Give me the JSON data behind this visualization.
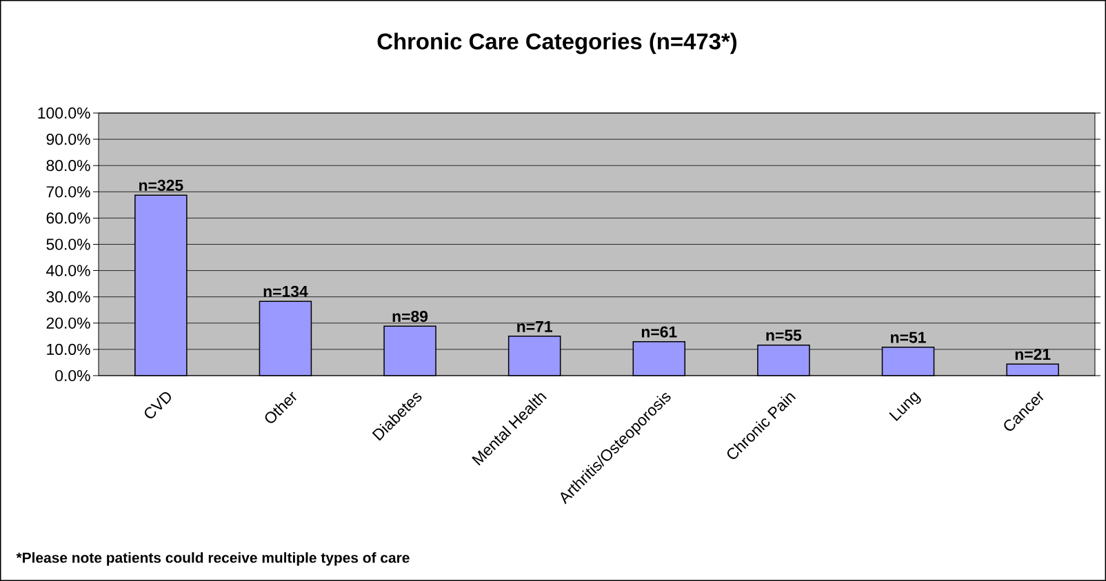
{
  "chart_data": {
    "type": "bar",
    "title": "Chronic Care Categories (n=473*)",
    "categories": [
      "CVD",
      "Other",
      "Diabetes",
      "Mental Health",
      "Arthritis/Osteoporosis",
      "Chronic Pain",
      "Lung",
      "Cancer"
    ],
    "values": [
      68.7,
      28.3,
      18.8,
      15.0,
      12.9,
      11.6,
      10.8,
      4.4
    ],
    "color": "#9999ff",
    "ylim": [
      0,
      100
    ],
    "yticks": [
      {
        "value": 0,
        "label": "0.0%"
      },
      {
        "value": 10,
        "label": "10.0%"
      },
      {
        "value": 20,
        "label": "20.0%"
      },
      {
        "value": 30,
        "label": "30.0%"
      },
      {
        "value": 40,
        "label": "40.0%"
      },
      {
        "value": 50,
        "label": "50.0%"
      },
      {
        "value": 60,
        "label": "60.0%"
      },
      {
        "value": 70,
        "label": "70.0%"
      },
      {
        "value": 80,
        "label": "80.0%"
      },
      {
        "value": 90,
        "label": "90.0%"
      },
      {
        "value": 100,
        "label": "100.0%"
      }
    ],
    "grid": "y",
    "annotations": [
      {
        "text": "n=325",
        "x": "CVD",
        "y": 68.7
      },
      {
        "text": "n=134",
        "x": "Other",
        "y": 28.3
      },
      {
        "text": "n=89",
        "x": "Diabetes",
        "y": 18.8
      },
      {
        "text": "n=71",
        "x": "Mental Health",
        "y": 15.0
      },
      {
        "text": "n=61",
        "x": "Arthritis/Osteoporosis",
        "y": 12.9
      },
      {
        "text": "n=55",
        "x": "Chronic Pain",
        "y": 11.6
      },
      {
        "text": "n=51",
        "x": "Lung",
        "y": 10.8
      },
      {
        "text": "n=21",
        "x": "Cancer",
        "y": 4.4
      },
      "*Please note patients could receive multiple types of care"
    ]
  }
}
